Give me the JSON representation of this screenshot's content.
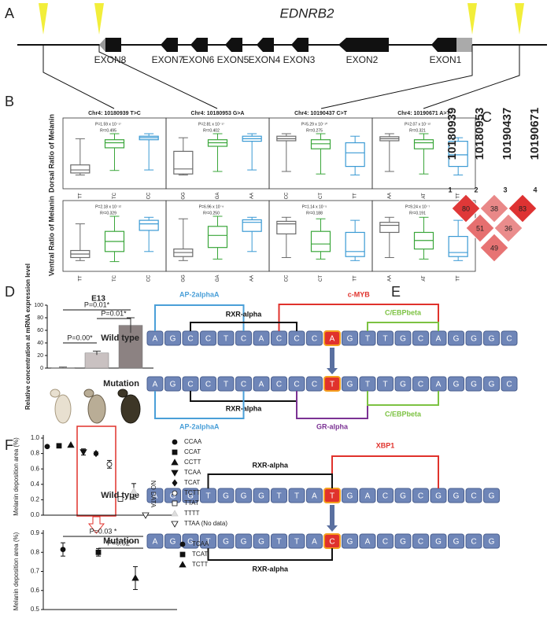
{
  "panelA": {
    "label": "A",
    "gene": "EDNRB2",
    "exons": [
      "EXON8",
      "EXON7",
      "EXON6",
      "EXON5",
      "EXON4",
      "EXON3",
      "EXON2",
      "EXON1"
    ]
  },
  "panelB": {
    "label": "B",
    "ylabels": [
      "Dorsal Ratio of Melanin",
      "Ventral Ratio of Melanin"
    ],
    "ylim": [
      0,
      1
    ],
    "colors": [
      "#6b6b6b",
      "#3aa63a",
      "#3a9ad4"
    ],
    "snps": [
      {
        "title": "Chr4: 10180939 T>C",
        "genotypes": [
          "TT",
          "TC",
          "CC"
        ],
        "dorsal": {
          "p": "P=1.59 x 10⁻¹⁷",
          "r2": "R²=0.495",
          "boxes": [
            [
              0.18,
              0.22,
              0.28,
              0.38,
              0.9
            ],
            [
              0.27,
              0.72,
              0.82,
              0.88,
              1.0
            ],
            [
              0.28,
              0.88,
              0.92,
              0.95,
              1.0
            ]
          ]
        },
        "ventral": {
          "p": "P=2.18 x 10⁻¹²",
          "r2": "R²=0.329",
          "boxes": [
            [
              0.12,
              0.18,
              0.25,
              0.32,
              0.85
            ],
            [
              0.1,
              0.3,
              0.5,
              0.7,
              1.0
            ],
            [
              0.3,
              0.72,
              0.85,
              0.92,
              0.98
            ]
          ]
        }
      },
      {
        "title": "Chr4: 10180953 G>A",
        "genotypes": [
          "GG",
          "GA",
          "AA"
        ],
        "dorsal": {
          "p": "P=2.81 x 10⁻¹⁷",
          "r2": "R²=0.402",
          "boxes": [
            [
              0.18,
              0.2,
              0.3,
              0.65,
              0.92
            ],
            [
              0.25,
              0.75,
              0.82,
              0.88,
              1.0
            ],
            [
              0.28,
              0.85,
              0.9,
              0.95,
              1.0
            ]
          ]
        },
        "ventral": {
          "p": "P=6.96 x 10⁻⁹",
          "r2": "R²=0.250",
          "boxes": [
            [
              0.12,
              0.2,
              0.28,
              0.35,
              0.95
            ],
            [
              0.15,
              0.38,
              0.62,
              0.8,
              1.0
            ],
            [
              0.3,
              0.7,
              0.88,
              0.93,
              0.98
            ]
          ]
        }
      },
      {
        "title": "Chr4: 10190437 C>T",
        "genotypes": [
          "CC",
          "CT",
          "TT"
        ],
        "dorsal": {
          "p": "P=5.29 x 10⁻¹⁰",
          "r2": "R²=0.275",
          "boxes": [
            [
              0.25,
              0.86,
              0.9,
              0.95,
              1.0
            ],
            [
              0.2,
              0.7,
              0.8,
              0.88,
              1.0
            ],
            [
              0.18,
              0.35,
              0.62,
              0.82,
              0.95
            ]
          ]
        },
        "ventral": {
          "p": "P=1.14 x 10⁻⁵",
          "r2": "R²=0.188",
          "boxes": [
            [
              0.18,
              0.65,
              0.85,
              0.9,
              0.98
            ],
            [
              0.15,
              0.3,
              0.45,
              0.7,
              0.95
            ],
            [
              0.12,
              0.2,
              0.3,
              0.68,
              0.92
            ]
          ]
        }
      },
      {
        "title": "Chr4: 10190671 A>T",
        "genotypes": [
          "AA",
          "AT",
          "TT"
        ],
        "dorsal": {
          "p": "P=2.07 x 10⁻¹²",
          "r2": "R²=0.321",
          "boxes": [
            [
              0.25,
              0.86,
              0.9,
              0.94,
              1.0
            ],
            [
              0.2,
              0.7,
              0.82,
              0.88,
              1.0
            ],
            [
              0.18,
              0.35,
              0.58,
              0.85,
              0.92
            ]
          ]
        },
        "ventral": {
          "p": "P=9.24 x 10⁻⁷",
          "r2": "R²=0.191",
          "boxes": [
            [
              0.18,
              0.68,
              0.82,
              0.88,
              0.98
            ],
            [
              0.15,
              0.35,
              0.52,
              0.68,
              0.98
            ],
            [
              0.12,
              0.2,
              0.28,
              0.6,
              0.92
            ]
          ]
        }
      }
    ]
  },
  "panelC": {
    "label": "C",
    "positions": [
      "10180939",
      "10180953",
      "10190437",
      "10190671"
    ],
    "indices": [
      1,
      2,
      3,
      4
    ],
    "cells": [
      80,
      38,
      83,
      51,
      36,
      49
    ]
  },
  "panelD": {
    "label": "D",
    "type": "bar",
    "title": "E13",
    "ylabel": "Relative concentration at mRNA expression level",
    "values": [
      1,
      24,
      68
    ],
    "errors": [
      0.5,
      3,
      12
    ],
    "colors": [
      "#ffffff",
      "#c9c1c1",
      "#8c8282"
    ],
    "ylim": [
      0,
      100
    ],
    "yticks": [
      0,
      20,
      40,
      60,
      80,
      100
    ],
    "annotations": [
      "P=0.00*",
      "P=0.01*",
      "P=0.01*"
    ]
  },
  "panelE": {
    "label": "E",
    "sites": [
      {
        "rows": [
          {
            "label": "Wild type",
            "sequence": "AGCCTCACCCAGTTGCAGGGC"
          },
          {
            "label": "Mutation",
            "sequence": "AGCCTCACCCTGTTGCAGGGC"
          }
        ],
        "above": [
          {
            "name": "AP-2alphaA",
            "color": "#4a9fd8"
          },
          {
            "name": "c-MYB",
            "color": "#e0322c"
          },
          {
            "name": "RXR-alpha",
            "color": "#111111"
          },
          {
            "name": "C/EBPbeta",
            "color": "#7cc242"
          }
        ],
        "below": [
          {
            "name": "RXR-alpha",
            "color": "#111111"
          },
          {
            "name": "AP-2alphaA",
            "color": "#4a9fd8"
          },
          {
            "name": "GR-alpha",
            "color": "#7b3294"
          },
          {
            "name": "C/EBPbeta",
            "color": "#7cc242"
          }
        ]
      },
      {
        "rows": [
          {
            "label": "Wild type",
            "sequence": "AGGTGGGTTATGACGCGGCG"
          },
          {
            "label": "Mutation",
            "sequence": "AGGTGGGTTACGACGCGGCG"
          }
        ],
        "above": [
          {
            "name": "XBP1",
            "color": "#e0322c"
          },
          {
            "name": "RXR-alpha",
            "color": "#111111"
          }
        ],
        "below": [
          {
            "name": "RXR-alpha",
            "color": "#111111"
          }
        ]
      }
    ]
  },
  "panelF": {
    "label": "F",
    "upper": {
      "type": "scatter",
      "ylabel": "Melanin deposition area (%)",
      "legend": [
        "CCAA",
        "CCAT",
        "CCTT",
        "TCAA",
        "TCAT",
        "TCTT",
        "TTAT",
        "TTTT",
        "TTAA (No data)"
      ],
      "markers": [
        "circle",
        "square",
        "triangle",
        "triangle-down",
        "diamond",
        "circle-open",
        "square-open",
        "triangle-light",
        "triangle-down-open"
      ],
      "values": [
        0.89,
        0.9,
        0.91,
        0.82,
        0.8,
        0.66,
        0.21,
        0.31,
        null
      ],
      "errors": [
        null,
        null,
        null,
        0.04,
        0.02,
        0.05,
        null,
        0.1,
        null
      ],
      "ylim": [
        0,
        1
      ],
      "yticks": [
        {
          "value": 0,
          "label": "0.0"
        },
        0.2,
        0.4,
        0.6,
        0.8,
        {
          "value": 1,
          "label": "1.0"
        }
      ],
      "note": "NO DATA"
    },
    "lower": {
      "type": "scatter",
      "ylabel": "Melanin deposition area (%)",
      "legend": [
        "TCAA",
        "TCAT",
        "TCTT"
      ],
      "markers": [
        "circle",
        "square",
        "triangle"
      ],
      "values": [
        0.815,
        0.8,
        0.665
      ],
      "errors": [
        0.035,
        0.02,
        0.06
      ],
      "ylim": [
        0.5,
        0.9
      ],
      "yticks": [
        0.5,
        0.6,
        0.7,
        0.8,
        0.9
      ],
      "annotations": [
        "P=0.03 *",
        "P=0.02 *"
      ]
    }
  }
}
